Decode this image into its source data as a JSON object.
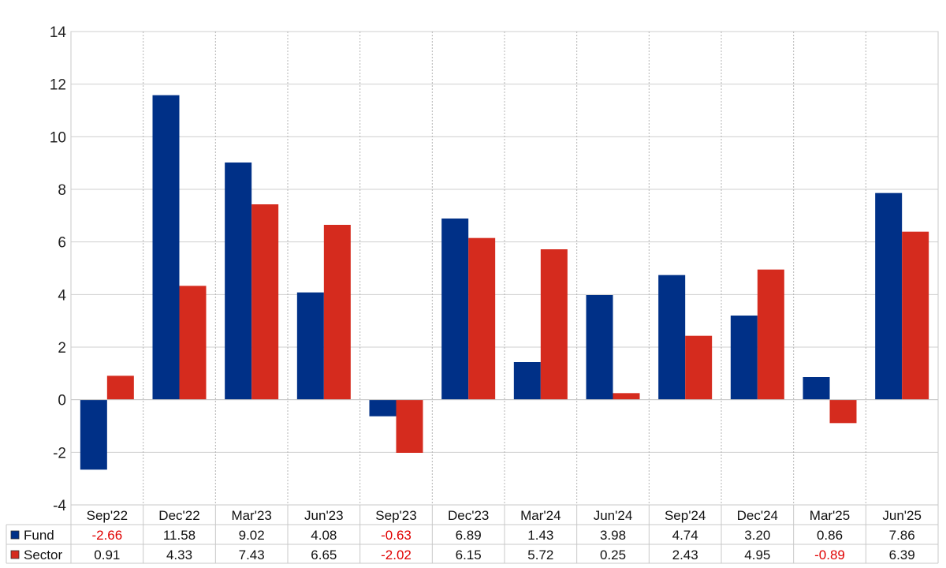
{
  "chart_data": {
    "type": "bar",
    "categories": [
      "Sep'22",
      "Dec'22",
      "Mar'23",
      "Jun'23",
      "Sep'23",
      "Dec'23",
      "Mar'24",
      "Jun'24",
      "Sep'24",
      "Dec'24",
      "Mar'25",
      "Jun'25"
    ],
    "series": [
      {
        "name": "Fund",
        "color": "#003087",
        "values": [
          -2.66,
          11.58,
          9.02,
          4.08,
          -0.63,
          6.89,
          1.43,
          3.98,
          4.74,
          3.2,
          0.86,
          7.86
        ],
        "labels": [
          "-2.66",
          "11.58",
          "9.02",
          "4.08",
          "-0.63",
          "6.89",
          "1.43",
          "3.98",
          "4.74",
          "3.20",
          "0.86",
          "7.86"
        ]
      },
      {
        "name": "Sector",
        "color": "#d52b1e",
        "values": [
          0.91,
          4.33,
          7.43,
          6.65,
          -2.02,
          6.15,
          5.72,
          0.25,
          2.43,
          4.95,
          -0.89,
          6.39
        ],
        "labels": [
          "0.91",
          "4.33",
          "7.43",
          "6.65",
          "-2.02",
          "6.15",
          "5.72",
          "0.25",
          "2.43",
          "4.95",
          "-0.89",
          "6.39"
        ]
      }
    ],
    "ylim": [
      -4,
      14
    ],
    "yticks": [
      "-4",
      "-2",
      "0",
      "2",
      "4",
      "6",
      "8",
      "10",
      "12",
      "14"
    ],
    "grid": true,
    "legend": "data table below chart",
    "negative_value_color": "#e00000"
  }
}
